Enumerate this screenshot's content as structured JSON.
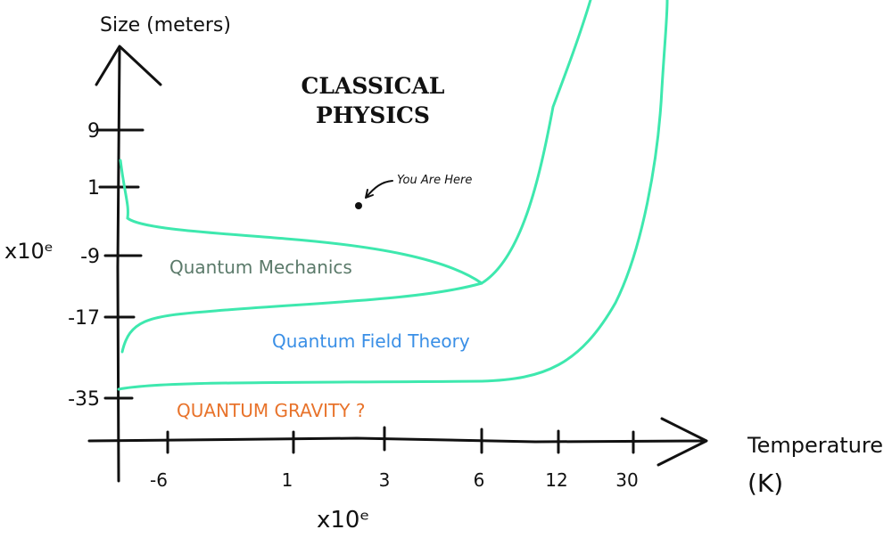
{
  "axes": {
    "y_label": "Size (meters)",
    "y_multiplier": "x10ᵉ",
    "y_ticks": [
      "9",
      "1",
      "-9",
      "-17",
      "-35"
    ],
    "x_label": "Temperature",
    "x_unit": "(K)",
    "x_multiplier": "x10ᵉ",
    "x_ticks": [
      "-6",
      "1",
      "3",
      "6",
      "12",
      "30"
    ]
  },
  "regions": {
    "classical": [
      "CLASSICAL",
      "PHYSICS"
    ],
    "quantum_mechanics": "Quantum Mechanics",
    "quantum_field_theory": "Quantum Field Theory",
    "quantum_gravity": "QUANTUM GRAVITY ?"
  },
  "annotation": "You Are Here"
}
